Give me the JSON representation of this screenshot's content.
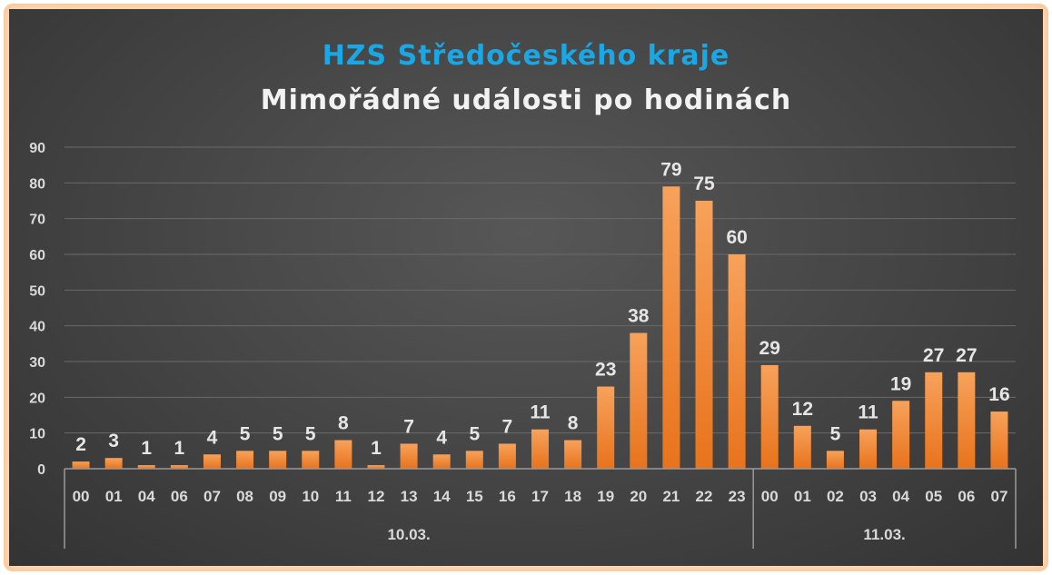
{
  "colors": {
    "title": "#19a7e6",
    "subtitle": "#f2f2f2",
    "bar_top": "#f7a25b",
    "bar_bottom": "#e8731c",
    "grid": "#6a6a6a",
    "axis": "#9a9a9a"
  },
  "chart_data": {
    "type": "bar",
    "title": "HZS Středočeského kraje",
    "subtitle": "Mimořádné události po hodinách",
    "xlabel": "",
    "ylabel": "",
    "ylim": [
      0,
      90
    ],
    "yticks": [
      0,
      10,
      20,
      30,
      40,
      50,
      60,
      70,
      80,
      90
    ],
    "grid": true,
    "categories": [
      "00",
      "01",
      "04",
      "06",
      "07",
      "08",
      "09",
      "10",
      "11",
      "12",
      "13",
      "14",
      "15",
      "16",
      "17",
      "18",
      "19",
      "20",
      "21",
      "22",
      "23",
      "00",
      "01",
      "02",
      "03",
      "04",
      "05",
      "06",
      "07"
    ],
    "values": [
      2,
      3,
      1,
      1,
      4,
      5,
      5,
      5,
      8,
      1,
      7,
      4,
      5,
      7,
      11,
      8,
      23,
      38,
      79,
      75,
      60,
      29,
      12,
      5,
      11,
      19,
      27,
      27,
      16
    ],
    "groups": [
      {
        "label": "10.03.",
        "count": 21
      },
      {
        "label": "11.03.",
        "count": 8
      }
    ]
  }
}
